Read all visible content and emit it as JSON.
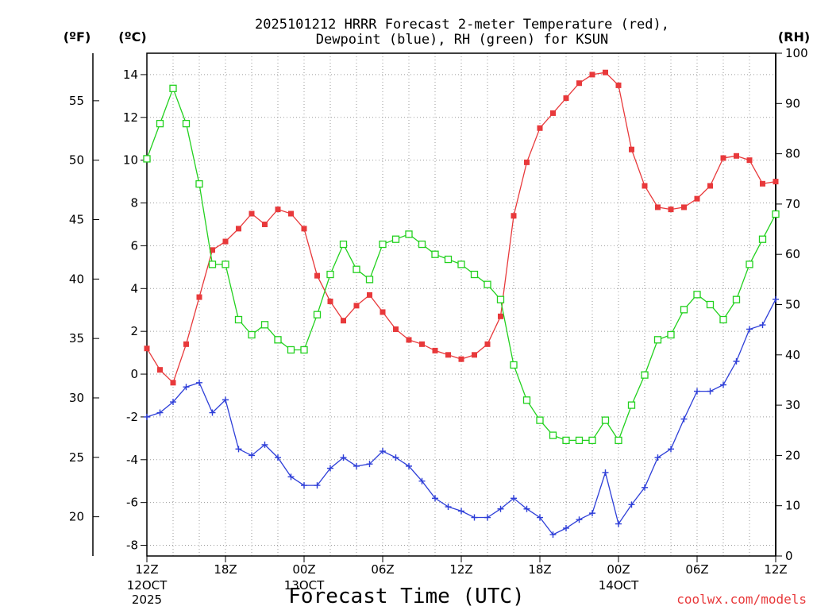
{
  "chart_data": {
    "type": "line",
    "title_line1": "2025101212 HRRR Forecast 2-meter Temperature (red),",
    "title_line2": "Dewpoint (blue), RH (green) for KSUN",
    "xlabel": "Forecast Time (UTC)",
    "credit": "coolwx.com/models",
    "units": {
      "fahrenheit": "(ºF)",
      "celsius": "(ºC)",
      "rh": "(RH)"
    },
    "x_range_hours": [
      0,
      48
    ],
    "celsius_axis": {
      "range": [
        -8.5,
        15.0
      ],
      "ticks": [
        "-8",
        "-6",
        "-4",
        "-2",
        "0",
        "2",
        "4",
        "6",
        "8",
        "10",
        "12",
        "14"
      ]
    },
    "fahrenheit_axis": {
      "ticks": [
        "20",
        "25",
        "30",
        "35",
        "40",
        "45",
        "50",
        "55"
      ]
    },
    "rh_axis": {
      "range": [
        0,
        100
      ],
      "ticks": [
        "0",
        "10",
        "20",
        "30",
        "40",
        "50",
        "60",
        "70",
        "80",
        "90",
        "100"
      ]
    },
    "x_ticks": [
      {
        "hour": 0,
        "label": "12Z",
        "sub": [
          "12OCT",
          "2025"
        ]
      },
      {
        "hour": 6,
        "label": "18Z",
        "sub": []
      },
      {
        "hour": 12,
        "label": "00Z",
        "sub": [
          "13OCT"
        ]
      },
      {
        "hour": 18,
        "label": "06Z",
        "sub": []
      },
      {
        "hour": 24,
        "label": "12Z",
        "sub": []
      },
      {
        "hour": 30,
        "label": "18Z",
        "sub": []
      },
      {
        "hour": 36,
        "label": "00Z",
        "sub": [
          "14OCT"
        ]
      },
      {
        "hour": 42,
        "label": "06Z",
        "sub": []
      },
      {
        "hour": 48,
        "label": "12Z",
        "sub": []
      }
    ],
    "series": [
      {
        "name": "Temperature",
        "units": "C",
        "color": "#e8393b",
        "marker": "filled-square",
        "values": [
          1.2,
          0.2,
          -0.4,
          1.4,
          3.6,
          5.8,
          6.2,
          6.8,
          7.5,
          7.0,
          7.7,
          7.5,
          6.8,
          4.6,
          3.4,
          2.5,
          3.2,
          3.7,
          2.9,
          2.1,
          1.6,
          1.4,
          1.1,
          0.9,
          0.7,
          0.9,
          1.4,
          2.7,
          7.4,
          9.9,
          11.5,
          12.2,
          12.9,
          13.6,
          14.0,
          14.1,
          13.5,
          10.5,
          8.8,
          7.8,
          7.7,
          7.8,
          8.2,
          8.8,
          10.1,
          10.2,
          10.0,
          8.9,
          9.0
        ]
      },
      {
        "name": "Dewpoint",
        "units": "C",
        "color": "#2e3fd8",
        "marker": "plus",
        "values": [
          -2.0,
          -1.8,
          -1.3,
          -0.6,
          -0.4,
          -1.8,
          -1.2,
          -3.5,
          -3.8,
          -3.3,
          -3.9,
          -4.8,
          -5.2,
          -5.2,
          -4.4,
          -3.9,
          -4.3,
          -4.2,
          -3.6,
          -3.9,
          -4.3,
          -5.0,
          -5.8,
          -6.2,
          -6.4,
          -6.7,
          -6.7,
          -6.3,
          -5.8,
          -6.3,
          -6.7,
          -7.5,
          -7.2,
          -6.8,
          -6.5,
          -4.6,
          -7.0,
          -6.1,
          -5.3,
          -3.9,
          -3.5,
          -2.1,
          -0.8,
          -0.8,
          -0.5,
          0.6,
          2.1,
          2.3,
          3.5
        ]
      },
      {
        "name": "RH",
        "units": "%",
        "color": "#22d11e",
        "marker": "open-square",
        "values": [
          79,
          86,
          93,
          86,
          74,
          58,
          58,
          47,
          44,
          46,
          43,
          41,
          41,
          48,
          56,
          62,
          57,
          55,
          62,
          63,
          64,
          62,
          60,
          59,
          58,
          56,
          54,
          51,
          38,
          31,
          27,
          24,
          23,
          23,
          23,
          27,
          23,
          30,
          36,
          43,
          44,
          49,
          52,
          50,
          47,
          51,
          58,
          63,
          68
        ]
      }
    ]
  }
}
